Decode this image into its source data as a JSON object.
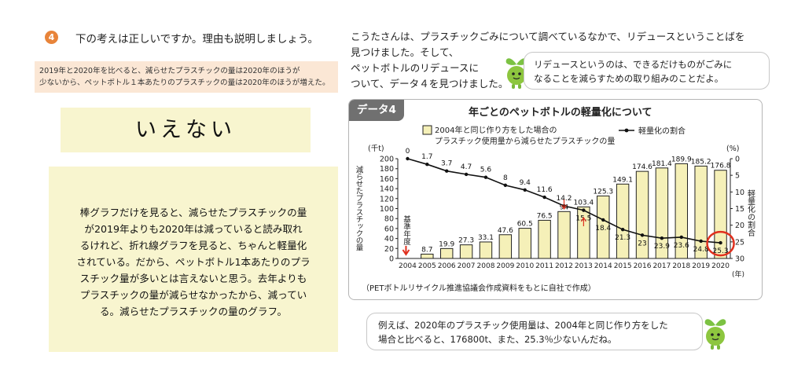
{
  "question": {
    "number": "4",
    "text": "下の考えは正しいですか。理由も説明しましょう。"
  },
  "claim": {
    "line1": "2019年と2020年を比べると、減らせたプラスチックの量は2020年のほうが",
    "line2": "少ないから、ペットボトル１本あたりのプラスチックの量は2020年のほうが増えた。"
  },
  "answer": "いえない",
  "explanation": {
    "lines": [
      "棒グラフだけを見ると、減らせたプラスチックの量",
      "が2019年よりも2020年は減っていると読み取れ",
      "るけれど、折れ線グラフを見ると、ちゃんと軽量化",
      "されている。だから、ペットボトル1本あたりのプラ",
      "スチック量が多いとは言えないと思う。去年よりも",
      "プラスチックの量が減らせなかったから、減ってい",
      "る。減らせたプラスチックの量のグラフ。"
    ]
  },
  "story": {
    "lines": [
      "こうたさんは、プラスチックごみについて調べているなかで、リデュースということばを",
      "見つけました。そして、",
      "ペットボトルのリデュースに",
      "ついて、データ４を見つけました。"
    ]
  },
  "bubble_top": {
    "line1": "リデュースというのは、できるだけものがごみに",
    "line2": "なることを減らすための取り組みのことだよ。"
  },
  "bubble_bottom": {
    "line1": "例えば、2020年のプラスチック使用量は、2004年と同じ作り方をした",
    "line2": "場合と比べると、176800t、また、25.3％少ないんだね。"
  },
  "chart_data": {
    "type": "bar",
    "badge": "データ4",
    "title": "年ごとのペットボトルの軽量化について",
    "legend_bar_line1": "2004年と同じ作り方をした場合の",
    "legend_bar_line2": "プラスチック使用量から減らせたプラスチックの量",
    "legend_line": "軽量化の割合",
    "left_unit": "(千t)",
    "right_unit": "(%)",
    "ylabel_left": "減らせたプラスチックの量",
    "ylabel_right": "軽量化の割合",
    "x_unit": "(年)",
    "baseline_label": "基準年度",
    "source": "（PETボトルリサイクル推進協議会作成資料をもとに自社で作成）",
    "categories": [
      "2004",
      "2005",
      "2006",
      "2007",
      "2008",
      "2009",
      "2010",
      "2011",
      "2012",
      "2013",
      "2014",
      "2015",
      "2016",
      "2017",
      "2018",
      "2019",
      "2020"
    ],
    "bar_values": [
      0,
      8.7,
      19.9,
      27.3,
      33.1,
      47.6,
      60.5,
      76.5,
      94,
      103.4,
      125.3,
      149.1,
      174.6,
      181.4,
      189.9,
      185.2,
      176.8
    ],
    "bar_labels": [
      "",
      "8.7",
      "19.9",
      "27.3",
      "33.1",
      "47.6",
      "60.5",
      "76.5",
      "94",
      "103.4",
      "125.3",
      "149.1",
      "174.6",
      "181.4",
      "189.9",
      "185.2",
      "176.8"
    ],
    "line_values": [
      0,
      1.7,
      3.7,
      4.7,
      5.6,
      8,
      9.4,
      11.6,
      14.2,
      15.5,
      18.4,
      21.3,
      23,
      23.9,
      23.6,
      24.8,
      25.3
    ],
    "line_labels": [
      "0",
      "1.7",
      "3.7",
      "4.7",
      "5.6",
      "8",
      "9.4",
      "11.6",
      "14.2",
      "15.5",
      "18.4",
      "21.3",
      "23",
      "23.9",
      "23.6",
      "24.8",
      "25.3"
    ],
    "ylim_left": [
      0,
      200
    ],
    "yticks_left": [
      0,
      20,
      40,
      60,
      80,
      100,
      120,
      140,
      160,
      180,
      200
    ],
    "ylim_right": [
      0,
      30
    ],
    "yticks_right": [
      0,
      5,
      10,
      15,
      20,
      25,
      30
    ],
    "colors": {
      "bar_fill": "#f5f0b8",
      "bar_stroke": "#222222",
      "line": "#111111",
      "highlight_circle": "#e0301e",
      "arrow": "#e0301e"
    }
  }
}
